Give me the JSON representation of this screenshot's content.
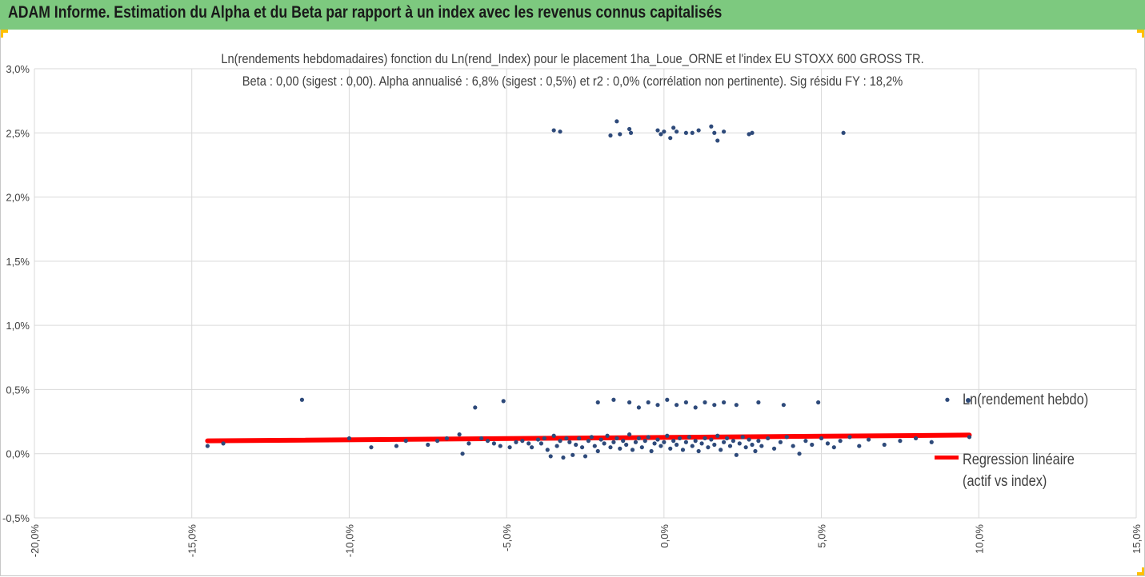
{
  "header": {
    "title": "ADAM Informe. Estimation du Alpha et du Beta par rapport à un index avec les revenus connus capitalisés",
    "background": "#7dc97f",
    "corner_accent": "#ffc000"
  },
  "chart_data": {
    "type": "scatter",
    "title_line1": "Ln(rendements hebdomadaires) fonction du Ln(rend_Index) pour le placement 1ha_Loue_ORNE et l'index EU STOXX 600 GROSS TR.",
    "title_line2": "Beta : 0,00 (sigest : 0,00).  Alpha annualisé : 6,8% (sigest : 0,5%) et r2 : 0,0% (corrélation non pertinente). Sig résidu FY : 18,2%",
    "xlim": [
      -20,
      15
    ],
    "ylim": [
      -0.5,
      3.0
    ],
    "x_ticks": [
      -20,
      -15,
      -10,
      -5,
      0,
      5,
      10,
      15
    ],
    "y_ticks": [
      -0.5,
      0,
      0.5,
      1.0,
      1.5,
      2.0,
      2.5,
      3.0
    ],
    "x_tick_labels": [
      "-20,0%",
      "-15,0%",
      "-10,0%",
      "-5,0%",
      "0,0%",
      "5,0%",
      "10,0%",
      "15,0%"
    ],
    "y_tick_labels": [
      "-0,5%",
      "0,0%",
      "0,5%",
      "1,0%",
      "1,5%",
      "2,0%",
      "2,5%",
      "3,0%"
    ],
    "grid": "vertical",
    "legend_position": "right",
    "series": [
      {
        "name": "Ln(rendement hebdo)",
        "color": "#2e4a7a",
        "points": [
          [
            -14.5,
            0.06
          ],
          [
            -14,
            0.08
          ],
          [
            -11.5,
            0.42
          ],
          [
            -10,
            0.12
          ],
          [
            -9.3,
            0.05
          ],
          [
            -8.5,
            0.06
          ],
          [
            -8.2,
            0.1
          ],
          [
            -7.5,
            0.07
          ],
          [
            -7.2,
            0.1
          ],
          [
            -6.9,
            0.12
          ],
          [
            -6.5,
            0.15
          ],
          [
            -6.4,
            0.0
          ],
          [
            -6.2,
            0.08
          ],
          [
            -6.0,
            0.36
          ],
          [
            -5.8,
            0.12
          ],
          [
            -5.6,
            0.1
          ],
          [
            -5.4,
            0.08
          ],
          [
            -5.2,
            0.06
          ],
          [
            -5.1,
            0.41
          ],
          [
            -4.9,
            0.05
          ],
          [
            -4.7,
            0.09
          ],
          [
            -4.5,
            0.1
          ],
          [
            -4.3,
            0.08
          ],
          [
            -4.2,
            0.05
          ],
          [
            -4.0,
            0.11
          ],
          [
            -3.9,
            0.08
          ],
          [
            -3.8,
            0.12
          ],
          [
            -3.7,
            0.03
          ],
          [
            -3.6,
            -0.02
          ],
          [
            -3.5,
            0.14
          ],
          [
            -3.4,
            0.06
          ],
          [
            -3.3,
            0.1
          ],
          [
            -3.2,
            -0.03
          ],
          [
            -3.1,
            0.12
          ],
          [
            -3.0,
            0.09
          ],
          [
            -2.9,
            -0.01
          ],
          [
            -2.8,
            0.07
          ],
          [
            -2.7,
            0.12
          ],
          [
            -2.6,
            0.05
          ],
          [
            -2.5,
            -0.02
          ],
          [
            -2.4,
            0.1
          ],
          [
            -2.3,
            0.13
          ],
          [
            -2.2,
            0.06
          ],
          [
            -2.1,
            0.02
          ],
          [
            -2.0,
            0.11
          ],
          [
            -1.9,
            0.08
          ],
          [
            -1.8,
            0.14
          ],
          [
            -1.7,
            0.05
          ],
          [
            -1.6,
            0.09
          ],
          [
            -1.5,
            0.12
          ],
          [
            -1.4,
            0.04
          ],
          [
            -1.3,
            0.1
          ],
          [
            -1.2,
            0.07
          ],
          [
            -1.1,
            0.15
          ],
          [
            -1.0,
            0.03
          ],
          [
            -0.9,
            0.09
          ],
          [
            -0.8,
            0.12
          ],
          [
            -0.7,
            0.05
          ],
          [
            -0.6,
            0.1
          ],
          [
            -0.5,
            0.13
          ],
          [
            -0.4,
            0.02
          ],
          [
            -0.3,
            0.08
          ],
          [
            -0.2,
            0.11
          ],
          [
            -0.1,
            0.06
          ],
          [
            0,
            0.09
          ],
          [
            0.1,
            0.14
          ],
          [
            0.2,
            0.04
          ],
          [
            0.3,
            0.1
          ],
          [
            0.4,
            0.07
          ],
          [
            0.5,
            0.12
          ],
          [
            0.6,
            0.03
          ],
          [
            0.7,
            0.09
          ],
          [
            0.8,
            0.13
          ],
          [
            0.9,
            0.06
          ],
          [
            1.0,
            0.1
          ],
          [
            1.1,
            0.02
          ],
          [
            1.2,
            0.08
          ],
          [
            1.3,
            0.12
          ],
          [
            1.4,
            0.05
          ],
          [
            1.5,
            0.11
          ],
          [
            1.6,
            0.07
          ],
          [
            1.7,
            0.14
          ],
          [
            1.8,
            0.03
          ],
          [
            1.9,
            0.09
          ],
          [
            2.0,
            0.12
          ],
          [
            2.1,
            0.06
          ],
          [
            2.2,
            0.1
          ],
          [
            2.3,
            -0.01
          ],
          [
            2.4,
            0.08
          ],
          [
            2.5,
            0.13
          ],
          [
            2.6,
            0.05
          ],
          [
            2.7,
            0.11
          ],
          [
            2.8,
            0.07
          ],
          [
            2.9,
            0.02
          ],
          [
            3.0,
            0.1
          ],
          [
            3.1,
            0.06
          ],
          [
            3.3,
            0.12
          ],
          [
            3.5,
            0.04
          ],
          [
            3.7,
            0.09
          ],
          [
            3.9,
            0.13
          ],
          [
            4.1,
            0.06
          ],
          [
            4.3,
            0.0
          ],
          [
            4.5,
            0.1
          ],
          [
            4.7,
            0.07
          ],
          [
            4.9,
            0.4
          ],
          [
            5.0,
            0.12
          ],
          [
            5.2,
            0.08
          ],
          [
            5.4,
            0.05
          ],
          [
            5.6,
            0.1
          ],
          [
            5.9,
            0.13
          ],
          [
            6.2,
            0.06
          ],
          [
            6.5,
            0.11
          ],
          [
            7.0,
            0.07
          ],
          [
            7.5,
            0.1
          ],
          [
            8.0,
            0.12
          ],
          [
            8.5,
            0.09
          ],
          [
            9.0,
            0.42
          ],
          [
            9.7,
            0.13
          ],
          [
            -2.1,
            0.4
          ],
          [
            -1.6,
            0.42
          ],
          [
            -1.1,
            0.4
          ],
          [
            -0.8,
            0.36
          ],
          [
            -0.5,
            0.4
          ],
          [
            -0.2,
            0.38
          ],
          [
            0.1,
            0.42
          ],
          [
            0.4,
            0.38
          ],
          [
            0.7,
            0.4
          ],
          [
            1.0,
            0.36
          ],
          [
            1.3,
            0.4
          ],
          [
            1.6,
            0.38
          ],
          [
            1.9,
            0.4
          ],
          [
            2.3,
            0.38
          ],
          [
            3.0,
            0.4
          ],
          [
            3.8,
            0.38
          ],
          [
            -3.5,
            2.52
          ],
          [
            -3.3,
            2.51
          ],
          [
            -1.7,
            2.48
          ],
          [
            -1.5,
            2.59
          ],
          [
            -1.4,
            2.49
          ],
          [
            -1.1,
            2.53
          ],
          [
            -1.05,
            2.5
          ],
          [
            -0.2,
            2.52
          ],
          [
            -0.1,
            2.49
          ],
          [
            0.0,
            2.51
          ],
          [
            0.2,
            2.46
          ],
          [
            0.3,
            2.54
          ],
          [
            0.4,
            2.51
          ],
          [
            0.7,
            2.5
          ],
          [
            0.9,
            2.5
          ],
          [
            1.1,
            2.52
          ],
          [
            1.5,
            2.55
          ],
          [
            1.6,
            2.5
          ],
          [
            1.7,
            2.44
          ],
          [
            1.9,
            2.51
          ],
          [
            2.7,
            2.49
          ],
          [
            2.8,
            2.5
          ],
          [
            5.7,
            2.5
          ]
        ]
      },
      {
        "name": "Regression linéaire\n(actif vs index)",
        "color": "#ff0000",
        "line": [
          [
            -14.5,
            0.1
          ],
          [
            9.7,
            0.145
          ]
        ]
      }
    ]
  }
}
